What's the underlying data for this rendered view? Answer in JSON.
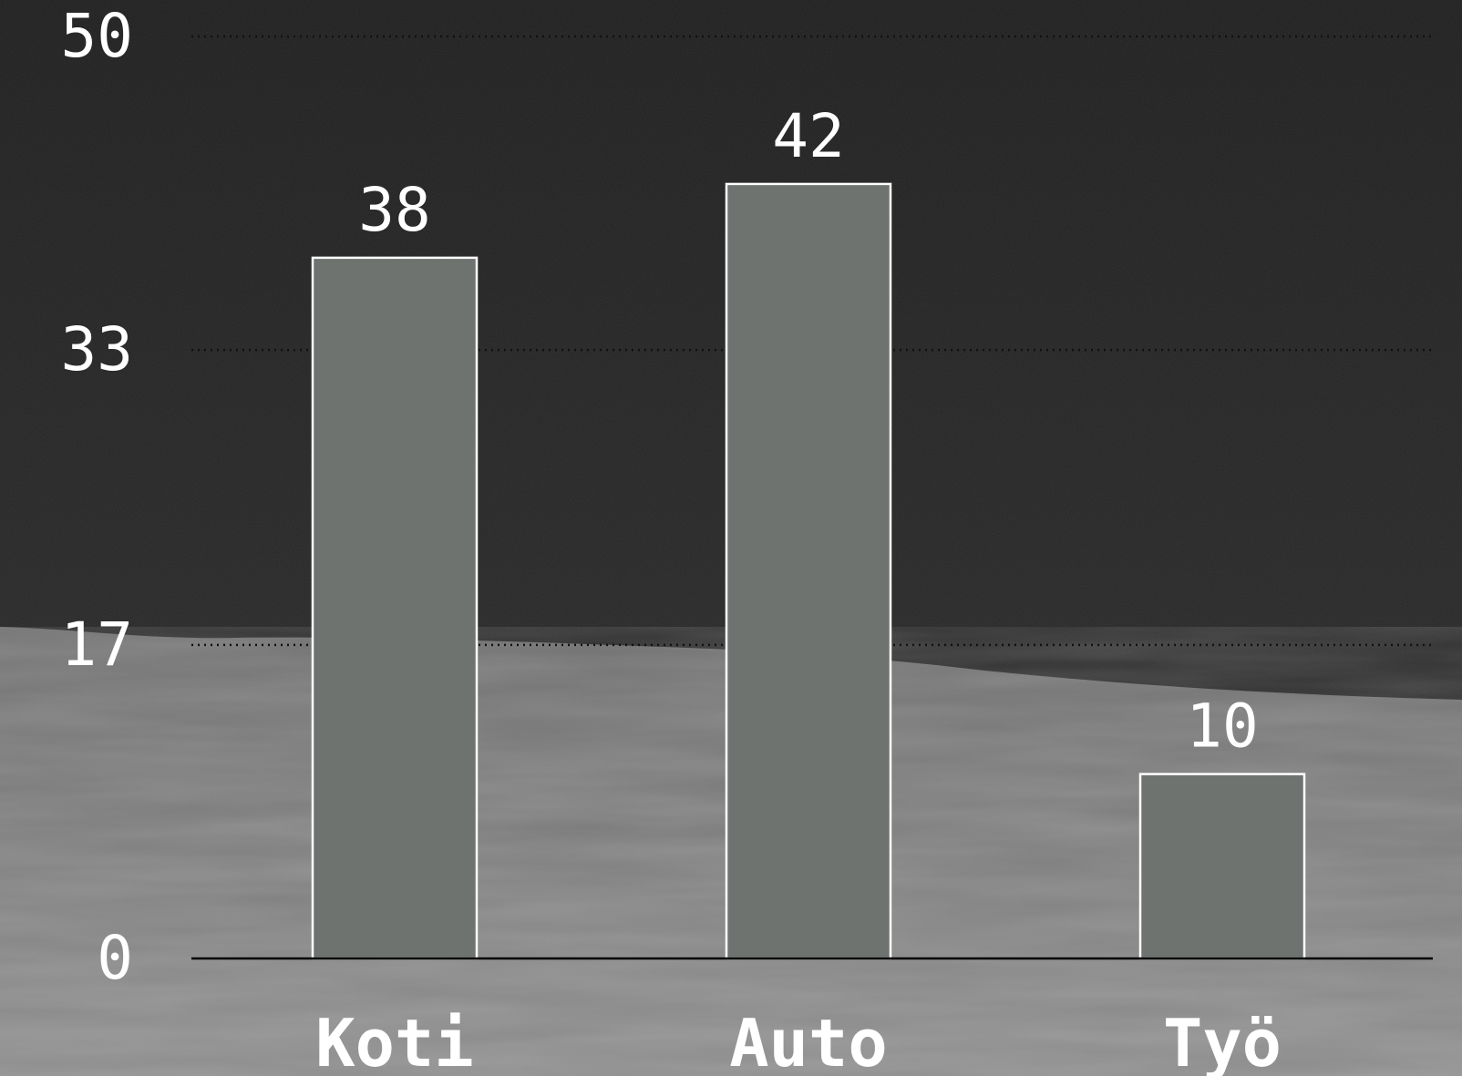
{
  "chart_data": {
    "type": "bar",
    "categories": [
      "Koti",
      "Auto",
      "Työ"
    ],
    "values": [
      38,
      42,
      10
    ],
    "data_labels": [
      "38",
      "42",
      "10"
    ],
    "title": "",
    "xlabel": "",
    "ylabel": "",
    "ylim": [
      0,
      50
    ],
    "yticks": [
      0,
      17,
      33,
      50
    ],
    "ytick_labels": [
      "0",
      "17",
      "33",
      "50"
    ],
    "grid": true,
    "legend": "none"
  },
  "colors": {
    "bar_fill": "#6e7370",
    "bar_stroke": "#ffffff",
    "text": "#ffffff",
    "gridline": "#111111",
    "baseline": "#000000",
    "sky_top": "#202020",
    "sky_bottom": "#2c2c2c",
    "ground_top": "#6a6a6a",
    "ground_bottom": "#888888"
  }
}
